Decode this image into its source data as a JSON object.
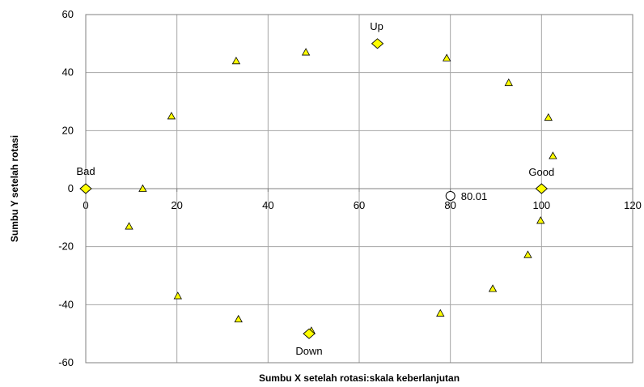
{
  "chart_data": {
    "type": "scatter",
    "title": "",
    "xlabel": "Sumbu X setelah rotasi:skala keberlanjutan",
    "ylabel": "Sumbu Y setelah rotasi",
    "xlim": [
      0,
      120
    ],
    "ylim": [
      -60,
      60
    ],
    "xticks": [
      0,
      20,
      40,
      60,
      80,
      100,
      120
    ],
    "yticks": [
      -60,
      -40,
      -20,
      0,
      20,
      40,
      60
    ],
    "grid": true,
    "colors": {
      "marker_fill": "#ffff00",
      "marker_edge": "#000000",
      "grid": "#a6a6a6"
    },
    "points": [
      {
        "x": 9.5,
        "y": -13
      },
      {
        "x": 12.5,
        "y": 0
      },
      {
        "x": 18.8,
        "y": 25
      },
      {
        "x": 20.2,
        "y": -37
      },
      {
        "x": 33,
        "y": 44
      },
      {
        "x": 33.5,
        "y": -45
      },
      {
        "x": 48.3,
        "y": 47
      },
      {
        "x": 49.5,
        "y": -49
      },
      {
        "x": 77.8,
        "y": -43
      },
      {
        "x": 79.2,
        "y": 45
      },
      {
        "x": 89.3,
        "y": -34.5
      },
      {
        "x": 92.8,
        "y": 36.5
      },
      {
        "x": 97,
        "y": -22.8
      },
      {
        "x": 99.8,
        "y": -11
      },
      {
        "x": 101.5,
        "y": 24.5
      },
      {
        "x": 102.5,
        "y": 11.3
      }
    ],
    "reference_points": [
      {
        "label": "Bad",
        "x": 0,
        "y": 0
      },
      {
        "label": "Good",
        "x": 100,
        "y": 0
      },
      {
        "label": "Up",
        "x": 64,
        "y": 50
      },
      {
        "label": "Down",
        "x": 49,
        "y": -50
      }
    ],
    "result_point": {
      "label": "80.01",
      "x": 80.01,
      "y": -2.5
    }
  }
}
